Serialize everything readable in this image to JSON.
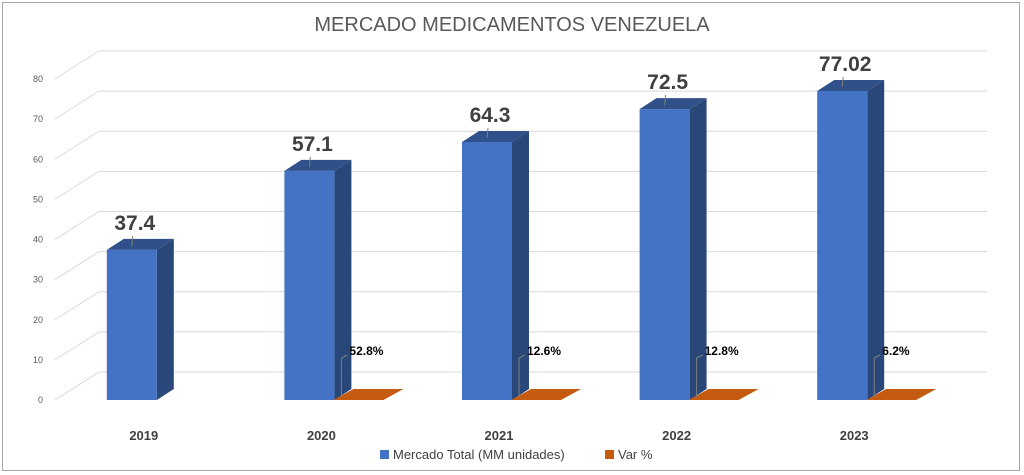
{
  "chart_data": {
    "type": "bar",
    "title": "MERCADO MEDICAMENTOS VENEZUELA",
    "categories": [
      "2019",
      "2020",
      "2021",
      "2022",
      "2023"
    ],
    "series": [
      {
        "name": "Mercado Total (MM unidades)",
        "color": "#4472c4",
        "values": [
          37.4,
          57.1,
          64.3,
          72.5,
          77.02
        ],
        "labels": [
          "37.4",
          "57.1",
          "64.3",
          "72.5",
          "77.02"
        ]
      },
      {
        "name": "Var %",
        "color": "#c55a11",
        "values": [
          null,
          52.8,
          12.6,
          12.8,
          6.2
        ],
        "labels": [
          "",
          "52.8%",
          "12.6%",
          "12.8%",
          "6.2%"
        ]
      }
    ],
    "ylim": [
      0,
      80
    ],
    "yticks": [
      0,
      10,
      20,
      30,
      40,
      50,
      60,
      70,
      80
    ],
    "grid": true,
    "legend": "bottom",
    "style": "3d-column"
  }
}
